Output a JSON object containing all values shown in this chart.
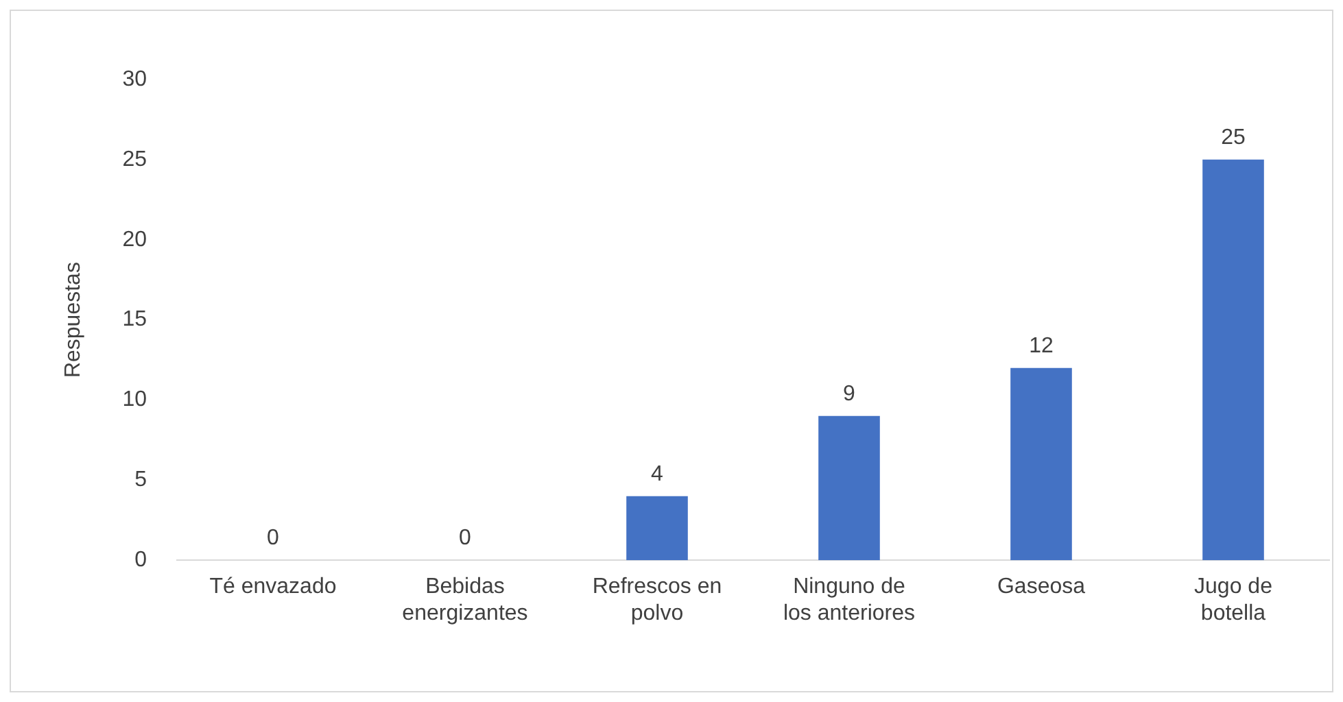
{
  "chart_data": {
    "type": "bar",
    "ylabel": "Respuestas",
    "categories": [
      "Té envazado",
      "Bebidas energizantes",
      "Refrescos en polvo",
      "Ninguno de los anteriores",
      "Gaseosa",
      "Jugo de botella"
    ],
    "values": [
      0,
      0,
      4,
      9,
      12,
      25
    ],
    "color": "#4472c4",
    "ylim": [
      0,
      30
    ],
    "yticks": [
      0,
      5,
      10,
      15,
      20,
      25,
      30
    ],
    "grid": false,
    "legend": false,
    "data_labels": true
  }
}
